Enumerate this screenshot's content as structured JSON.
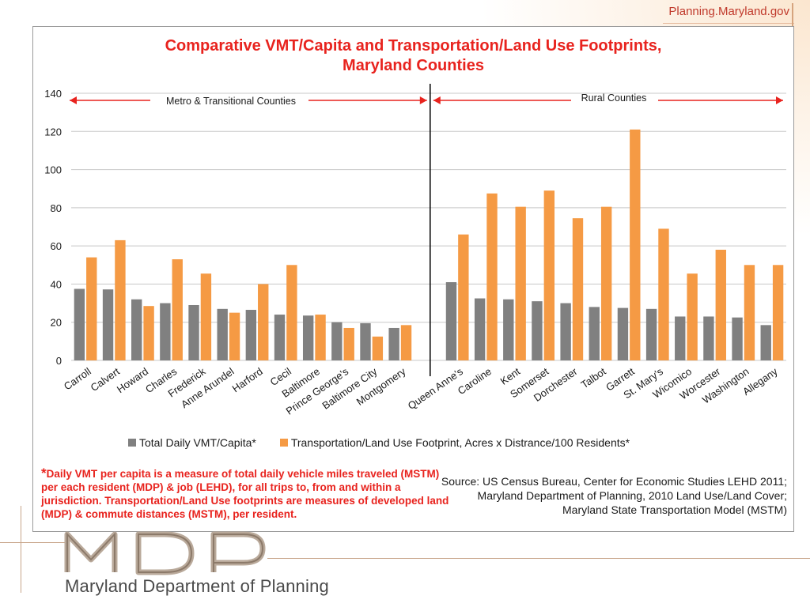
{
  "header": {
    "site_link": "Planning.Maryland.gov"
  },
  "footer": {
    "department": "Maryland Department of Planning",
    "logo_text": "MDP"
  },
  "colors": {
    "series1": "#808080",
    "series2": "#f59a44",
    "title": "#e8231e",
    "arrow": "#e8231e"
  },
  "chart_data": {
    "type": "bar",
    "title": "Comparative VMT/Capita and Transportation/Land Use Footprints, Maryland Counties",
    "title_lines": [
      "Comparative VMT/Capita and Transportation/Land Use Footprints,",
      "Maryland Counties"
    ],
    "ylim": [
      0,
      140
    ],
    "yticks": [
      0,
      20,
      40,
      60,
      80,
      100,
      120,
      140
    ],
    "grid": true,
    "legend_position": "bottom",
    "categories": [
      "Carroll",
      "Calvert",
      "Howard",
      "Charles",
      "Frederick",
      "Anne Arundel",
      "Harford",
      "Cecil",
      "Baltimore",
      "Prince George's",
      "Baltimore City",
      "Montgomery",
      "Queen Anne's",
      "Caroline",
      "Kent",
      "Somerset",
      "Dorchester",
      "Talbot",
      "Garrett",
      "St. Mary's",
      "Wicomico",
      "Worcester",
      "Washington",
      "Allegany"
    ],
    "series": [
      {
        "name": "Total Daily VMT/Capita*",
        "values": [
          37.5,
          37.2,
          32,
          30,
          29,
          27,
          26.5,
          24,
          23.5,
          20,
          19.5,
          17,
          41,
          32.5,
          32,
          31,
          30,
          28,
          27.5,
          27,
          23,
          23,
          22.5,
          18.5
        ]
      },
      {
        "name": "Transportation/Land Use Footprint, Acres x Distrance/100 Residents*",
        "values": [
          54,
          63,
          28.5,
          53,
          45.5,
          25,
          40,
          50,
          24,
          17,
          12.5,
          18.5,
          66,
          87.5,
          80.5,
          89,
          74.5,
          80.5,
          121,
          69,
          45.5,
          58,
          50,
          50
        ]
      }
    ],
    "groups": [
      {
        "label": "Metro & Transitional Counties",
        "count": 12
      },
      {
        "label": "Rural Counties",
        "count": 12
      }
    ]
  },
  "footnote": {
    "star": "*",
    "text": "Daily VMT per capita is a measure of total daily vehicle miles traveled (MSTM) per each resident (MDP) & job (LEHD), for all trips to, from and within a jurisdiction. Transportation/Land Use footprints are measures of developed land (MDP) & commute distances (MSTM), per resident."
  },
  "source": "Source: US Census Bureau, Center for Economic Studies LEHD 2011; Maryland Department of Planning, 2010 Land Use/Land Cover; Maryland State Transportation Model (MSTM)"
}
